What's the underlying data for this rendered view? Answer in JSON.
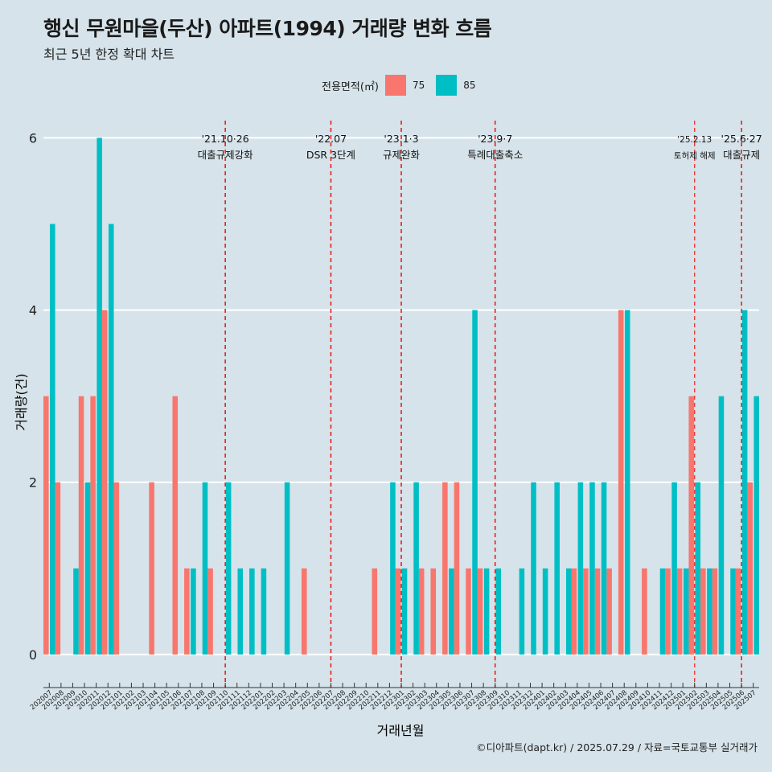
{
  "header": {
    "title": "행신 무원마을(두산) 아파트(1994) 거래량 변화 흐름",
    "subtitle": "최근 5년 한정 확대 차트"
  },
  "legend": {
    "title": "전용면적(㎡)",
    "items": [
      {
        "label": "75",
        "color": "#f8766d"
      },
      {
        "label": "85",
        "color": "#00bfc4"
      }
    ]
  },
  "caption": "©디아파트(dapt.kr) / 2025.07.29 / 자료=국토교통부 실거래가",
  "chart_data": {
    "type": "bar",
    "title": "행신 무원마을(두산) 아파트(1994) 거래량 변화 흐름",
    "xlabel": "거래년월",
    "ylabel": "거래량(건)",
    "ylim": [
      -0.3,
      6.2
    ],
    "yticks": [
      0,
      2,
      4,
      6
    ],
    "grid": true,
    "categories": [
      "202007",
      "202008",
      "202009",
      "202010",
      "202011",
      "202012",
      "202101",
      "202102",
      "202103",
      "202104",
      "202105",
      "202106",
      "202107",
      "202108",
      "202109",
      "202110",
      "202111",
      "202112",
      "202201",
      "202202",
      "202203",
      "202204",
      "202205",
      "202206",
      "202207",
      "202208",
      "202209",
      "202210",
      "202211",
      "202212",
      "202301",
      "202302",
      "202303",
      "202304",
      "202305",
      "202306",
      "202307",
      "202308",
      "202309",
      "202310",
      "202311",
      "202312",
      "202401",
      "202402",
      "202403",
      "202404",
      "202405",
      "202406",
      "202407",
      "202408",
      "202409",
      "202410",
      "202411",
      "202412",
      "202501",
      "202502",
      "202503",
      "202504",
      "202505",
      "202506",
      "202507"
    ],
    "series": [
      {
        "name": "75",
        "color": "#f8766d",
        "values": [
          3,
          2,
          0,
          3,
          3,
          4,
          2,
          0,
          0,
          2,
          0,
          3,
          1,
          0,
          1,
          0,
          0,
          0,
          0,
          0,
          0,
          0,
          1,
          0,
          0,
          0,
          0,
          0,
          1,
          0,
          1,
          0,
          1,
          1,
          2,
          2,
          1,
          1,
          0,
          0,
          0,
          0,
          0,
          0,
          0,
          1,
          1,
          1,
          1,
          4,
          0,
          1,
          0,
          1,
          1,
          3,
          1,
          1,
          0,
          1,
          2
        ]
      },
      {
        "name": "85",
        "color": "#00bfc4",
        "values": [
          5,
          0,
          1,
          2,
          6,
          5,
          0,
          0,
          0,
          0,
          0,
          0,
          1,
          2,
          0,
          2,
          1,
          1,
          1,
          0,
          2,
          0,
          0,
          0,
          0,
          0,
          0,
          0,
          0,
          2,
          1,
          2,
          0,
          0,
          1,
          0,
          4,
          1,
          1,
          0,
          1,
          2,
          1,
          2,
          1,
          2,
          2,
          2,
          0,
          4,
          0,
          0,
          1,
          2,
          1,
          2,
          1,
          3,
          1,
          4,
          3
        ]
      }
    ],
    "annotations": [
      {
        "date": "'21.10·26",
        "label": "대출규제강화",
        "month_index": 15.5
      },
      {
        "date": "'22.07",
        "label": "DSR 3단계",
        "month_index": 24.5
      },
      {
        "date": "'23.1·3",
        "label": "규제완화",
        "month_index": 30.5
      },
      {
        "date": "'23.9·7",
        "label": "특례대출축소",
        "month_index": 38.5
      },
      {
        "date": "'25.2.13",
        "label": "토허제 해제",
        "month_index": 55.5,
        "small": true
      },
      {
        "date": "'25.6·27",
        "label": "대출규제",
        "month_index": 59.5
      }
    ]
  }
}
